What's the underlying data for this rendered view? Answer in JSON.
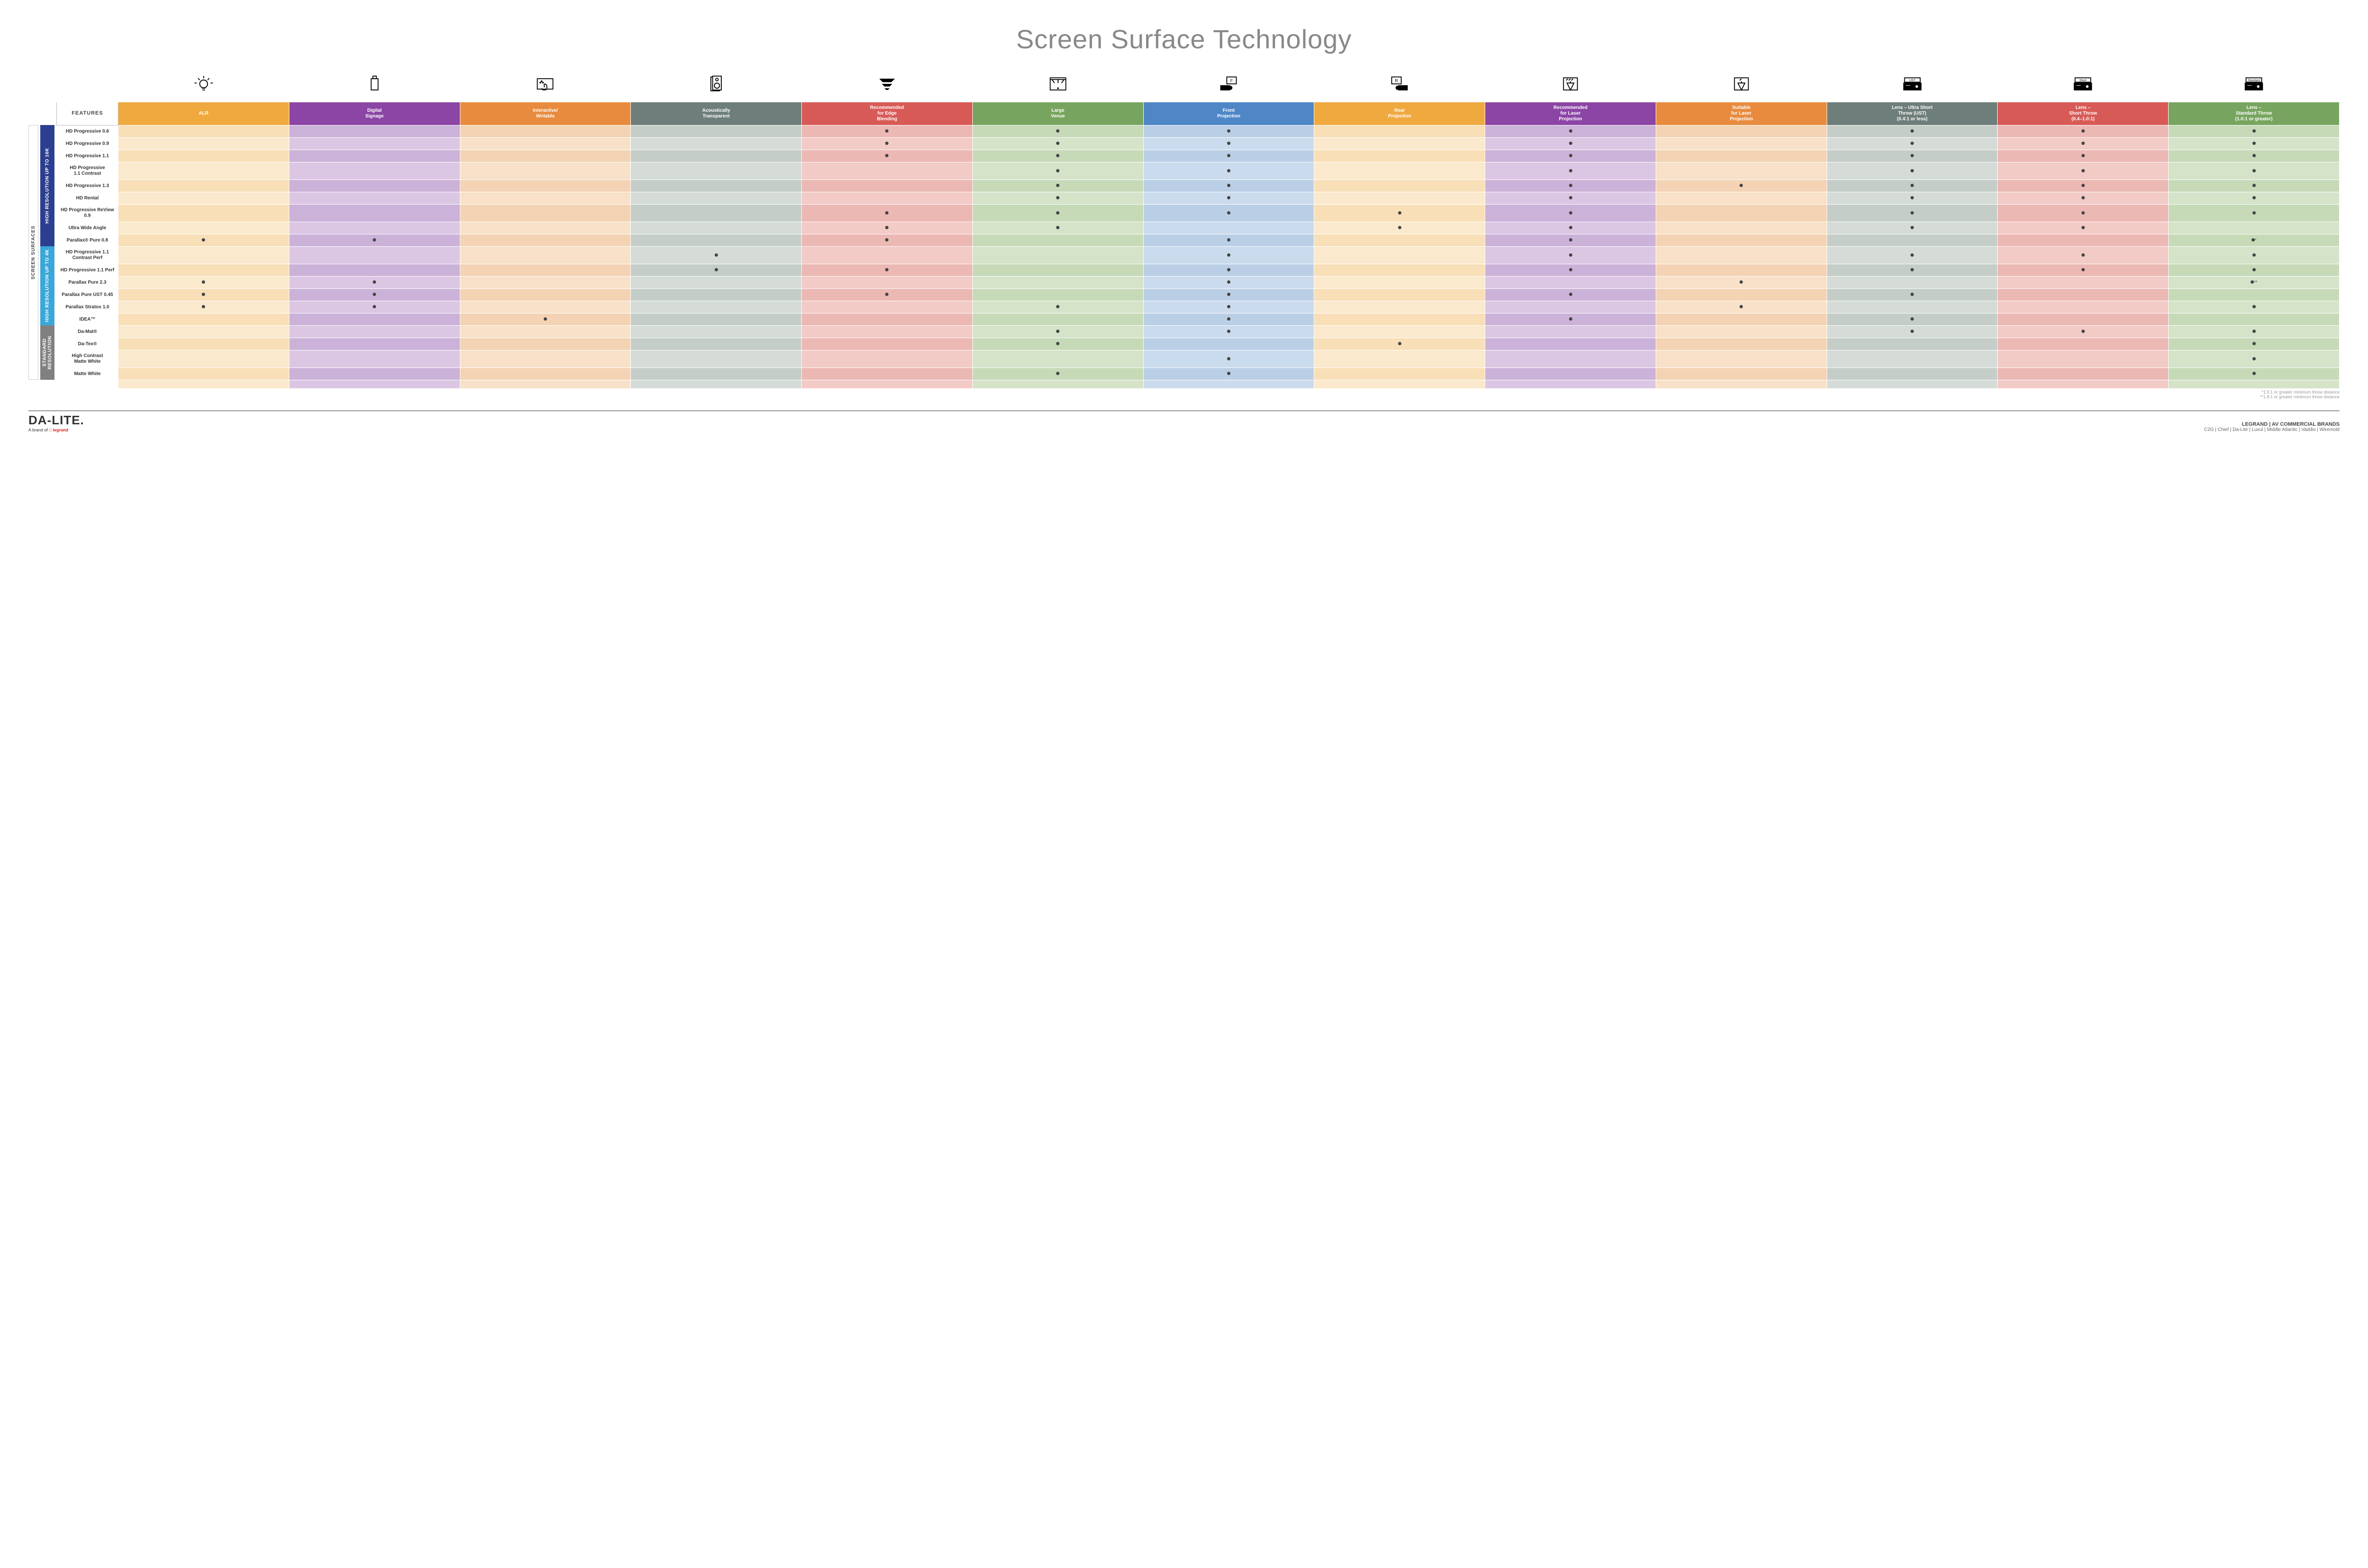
{
  "title": "Screen Surface Technology",
  "features_header": "FEATURES",
  "side_label": "SCREEN SURFACES",
  "groups": [
    {
      "label": "HIGH RESOLUTION UP TO 16K",
      "rows": 9,
      "color": "#2b3e8f"
    },
    {
      "label": "HIGH RESOLUTION UP TO 4K",
      "rows": 6,
      "color": "#3aa7d9"
    },
    {
      "label": "STANDARD RESOLUTION",
      "rows": 4,
      "color": "#808080"
    }
  ],
  "columns": [
    {
      "key": "alr",
      "label": "ALR",
      "color": "#f0a93f",
      "tint_even": "#f8dfb8",
      "tint_odd": "#fbe9cd",
      "icon": "bulb"
    },
    {
      "key": "signage",
      "label": "Digital\nSignage",
      "color": "#8b45a5",
      "tint_even": "#cbb2d8",
      "tint_odd": "#dbc7e4",
      "icon": "signage"
    },
    {
      "key": "interactive",
      "label": "Interactive/\nWritable",
      "color": "#e88b3e",
      "tint_even": "#f3d3b3",
      "tint_odd": "#f8e1c8",
      "icon": "touch"
    },
    {
      "key": "acoustic",
      "label": "Acoustically\nTransparent",
      "color": "#6e7e7a",
      "tint_even": "#c5cdc9",
      "tint_odd": "#d5dbd7",
      "icon": "speaker"
    },
    {
      "key": "edge",
      "label": "Recommended\nfor Edge\nBlending",
      "color": "#d85a57",
      "tint_even": "#ecb8b4",
      "tint_odd": "#f2cac6",
      "icon": "blend"
    },
    {
      "key": "venue",
      "label": "Large\nVenue",
      "color": "#77a55f",
      "tint_even": "#c7dab8",
      "tint_odd": "#d5e3c9",
      "icon": "venue"
    },
    {
      "key": "front",
      "label": "Front\nProjection",
      "color": "#4e86c6",
      "tint_even": "#bacfe6",
      "tint_odd": "#cbdbee",
      "icon": "front"
    },
    {
      "key": "rear",
      "label": "Rear\nProjection",
      "color": "#f0a93f",
      "tint_even": "#f8dfb8",
      "tint_odd": "#fbe9cd",
      "icon": "rear"
    },
    {
      "key": "laser_rec",
      "label": "Recommended\nfor Laser\nProjection",
      "color": "#8b45a5",
      "tint_even": "#cbb2d8",
      "tint_odd": "#dbc7e4",
      "icon": "laser3"
    },
    {
      "key": "laser_suit",
      "label": "Suitable\nfor Laser\nProjection",
      "color": "#e88b3e",
      "tint_even": "#f3d3b3",
      "tint_odd": "#f8e1c8",
      "icon": "laser1"
    },
    {
      "key": "ust",
      "label": "Lens – Ultra Short\nThrow (UST)\n(0.4:1 or less)",
      "color": "#6e7e7a",
      "tint_even": "#c5cdc9",
      "tint_odd": "#d5dbd7",
      "icon": "proj_ust"
    },
    {
      "key": "short",
      "label": "Lens –\nShort Throw\n(0.4–1.0:1)",
      "color": "#d85a57",
      "tint_even": "#ecb8b4",
      "tint_odd": "#f2cac6",
      "icon": "proj_short"
    },
    {
      "key": "std",
      "label": "Lens –\nStandard Throw\n(1.0:1 or greater)",
      "color": "#77a55f",
      "tint_even": "#c7dab8",
      "tint_odd": "#d5e3c9",
      "icon": "proj_std"
    }
  ],
  "rows": [
    {
      "label": "HD Progressive 0.6",
      "dots": {
        "edge": "1",
        "venue": "1",
        "front": "1",
        "laser_rec": "1",
        "ust": "1",
        "short": "1",
        "std": "1"
      }
    },
    {
      "label": "HD Progressive 0.9",
      "dots": {
        "edge": "1",
        "venue": "1",
        "front": "1",
        "laser_rec": "1",
        "ust": "1",
        "short": "1",
        "std": "1"
      }
    },
    {
      "label": "HD Progressive 1.1",
      "dots": {
        "edge": "1",
        "venue": "1",
        "front": "1",
        "laser_rec": "1",
        "ust": "1",
        "short": "1",
        "std": "1"
      }
    },
    {
      "label": "HD Progressive\n1.1 Contrast",
      "dots": {
        "venue": "1",
        "front": "1",
        "laser_rec": "1",
        "ust": "1",
        "short": "1",
        "std": "1"
      }
    },
    {
      "label": "HD Progressive 1.3",
      "dots": {
        "venue": "1",
        "front": "1",
        "laser_rec": "1",
        "laser_suit": "1",
        "ust": "1",
        "short": "1",
        "std": "1"
      }
    },
    {
      "label": "HD Rental",
      "dots": {
        "venue": "1",
        "front": "1",
        "laser_rec": "1",
        "ust": "1",
        "short": "1",
        "std": "1"
      }
    },
    {
      "label": "HD Progressive ReView 0.9",
      "dots": {
        "edge": "1",
        "venue": "1",
        "front": "1",
        "rear": "1",
        "laser_rec": "1",
        "ust": "1",
        "short": "1",
        "std": "1"
      }
    },
    {
      "label": "Ultra Wide Angle",
      "dots": {
        "edge": "1",
        "venue": "1",
        "rear": "1",
        "laser_rec": "1",
        "ust": "1",
        "short": "1"
      }
    },
    {
      "label": "Parallax® Pure 0.8",
      "dots": {
        "alr": "1",
        "signage": "1",
        "edge": "1",
        "front": "1",
        "laser_rec": "1",
        "std": "*"
      }
    },
    {
      "label": "HD Progressive 1.1\nContrast Perf",
      "dots": {
        "acoustic": "1",
        "front": "1",
        "laser_rec": "1",
        "ust": "1",
        "short": "1",
        "std": "1"
      }
    },
    {
      "label": "HD Progressive 1.1 Perf",
      "dots": {
        "acoustic": "1",
        "edge": "1",
        "front": "1",
        "laser_rec": "1",
        "ust": "1",
        "short": "1",
        "std": "1"
      }
    },
    {
      "label": "Parallax Pure 2.3",
      "dots": {
        "alr": "1",
        "signage": "1",
        "front": "1",
        "laser_suit": "1",
        "std": "**"
      }
    },
    {
      "label": "Parallax Pure UST 0.45",
      "dots": {
        "alr": "1",
        "signage": "1",
        "edge": "1",
        "front": "1",
        "laser_rec": "1",
        "ust": "1"
      }
    },
    {
      "label": "Parallax Stratos 1.0",
      "dots": {
        "alr": "1",
        "signage": "1",
        "venue": "1",
        "front": "1",
        "laser_suit": "1",
        "std": "1"
      }
    },
    {
      "label": "IDEA™",
      "dots": {
        "interactive": "1",
        "front": "1",
        "laser_rec": "1",
        "ust": "1"
      }
    },
    {
      "label": "Da-Mat®",
      "dots": {
        "venue": "1",
        "front": "1",
        "ust": "1",
        "short": "1",
        "std": "1"
      }
    },
    {
      "label": "Da-Tex®",
      "dots": {
        "venue": "1",
        "rear": "1",
        "std": "1"
      }
    },
    {
      "label": "High Contrast\nMatte White",
      "dots": {
        "front": "1",
        "std": "1"
      }
    },
    {
      "label": "Matte White",
      "dots": {
        "venue": "1",
        "front": "1",
        "std": "1"
      }
    }
  ],
  "footnotes": [
    "*1.5:1 or greater minimum throw distance",
    "**1.8:1 or greater minimum throw distance"
  ],
  "footer": {
    "logo": "DA-LITE.",
    "logo_sub_prefix": "A brand of ",
    "logo_sub_brand": "legrand",
    "brands_title": "LEGRAND | AV COMMERCIAL BRANDS",
    "brands_list": "C2G  |  Chief  |  Da-Lite  |  Luxul  |  Middle Atlantic  |  Vaddio  |  Wiremold"
  }
}
